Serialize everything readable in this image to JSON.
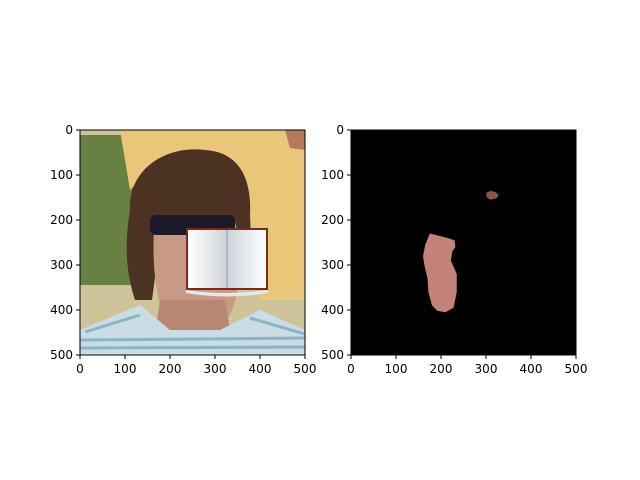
{
  "chart_data": [
    {
      "type": "image",
      "description_panel": "left",
      "xlim": [
        0,
        500
      ],
      "ylim": [
        500,
        0
      ],
      "x_ticks": [
        0,
        100,
        200,
        300,
        400,
        500
      ],
      "y_ticks": [
        0,
        100,
        200,
        300,
        400,
        500
      ],
      "x_tick_labels": [
        "0",
        "100",
        "200",
        "300",
        "400",
        "500"
      ],
      "y_tick_labels": [
        "0",
        "100",
        "200",
        "300",
        "400",
        "500"
      ],
      "title": "",
      "xlabel": "",
      "ylabel": "",
      "overlay": "book-icon"
    },
    {
      "type": "image",
      "description_panel": "right",
      "xlim": [
        0,
        500
      ],
      "ylim": [
        500,
        0
      ],
      "x_ticks": [
        0,
        100,
        200,
        300,
        400,
        500
      ],
      "y_ticks": [
        0,
        100,
        200,
        300,
        400,
        500
      ],
      "x_tick_labels": [
        "0",
        "100",
        "200",
        "300",
        "400",
        "500"
      ],
      "y_tick_labels": [
        "0",
        "100",
        "200",
        "300",
        "400",
        "500"
      ],
      "title": "",
      "xlabel": "",
      "ylabel": "",
      "background_color": "#000000",
      "regions": [
        {
          "name": "face-skin-region",
          "points": [
            [
              175,
              230
            ],
            [
              195,
              235
            ],
            [
              215,
              240
            ],
            [
              230,
              245
            ],
            [
              232,
              260
            ],
            [
              225,
              270
            ],
            [
              222,
              290
            ],
            [
              235,
              320
            ],
            [
              235,
              360
            ],
            [
              228,
              395
            ],
            [
              210,
              405
            ],
            [
              192,
              402
            ],
            [
              180,
              390
            ],
            [
              172,
              360
            ],
            [
              170,
              330
            ],
            [
              163,
              300
            ],
            [
              160,
              280
            ],
            [
              165,
              255
            ]
          ],
          "fill": "#c4837a"
        },
        {
          "name": "hand-skin-region",
          "points": [
            [
              300,
              140
            ],
            [
              310,
              135
            ],
            [
              322,
              138
            ],
            [
              328,
              145
            ],
            [
              323,
              152
            ],
            [
              310,
              155
            ],
            [
              302,
              150
            ]
          ],
          "fill": "#8d5550"
        }
      ]
    }
  ],
  "colors": {
    "axis": "#000000",
    "sky": "#d8cfa4",
    "grass": "#5c7a3a",
    "shirt_yellow": "#e8c77a",
    "hair": "#4b3222",
    "skin": "#c89a86",
    "sunglasses": "#1a1a2a",
    "tshirt": "#c8dde6",
    "tshirt_stripe": "#8fb3c4",
    "book_page": "#f1f3f6",
    "book_cover": "#7a2a1a"
  }
}
